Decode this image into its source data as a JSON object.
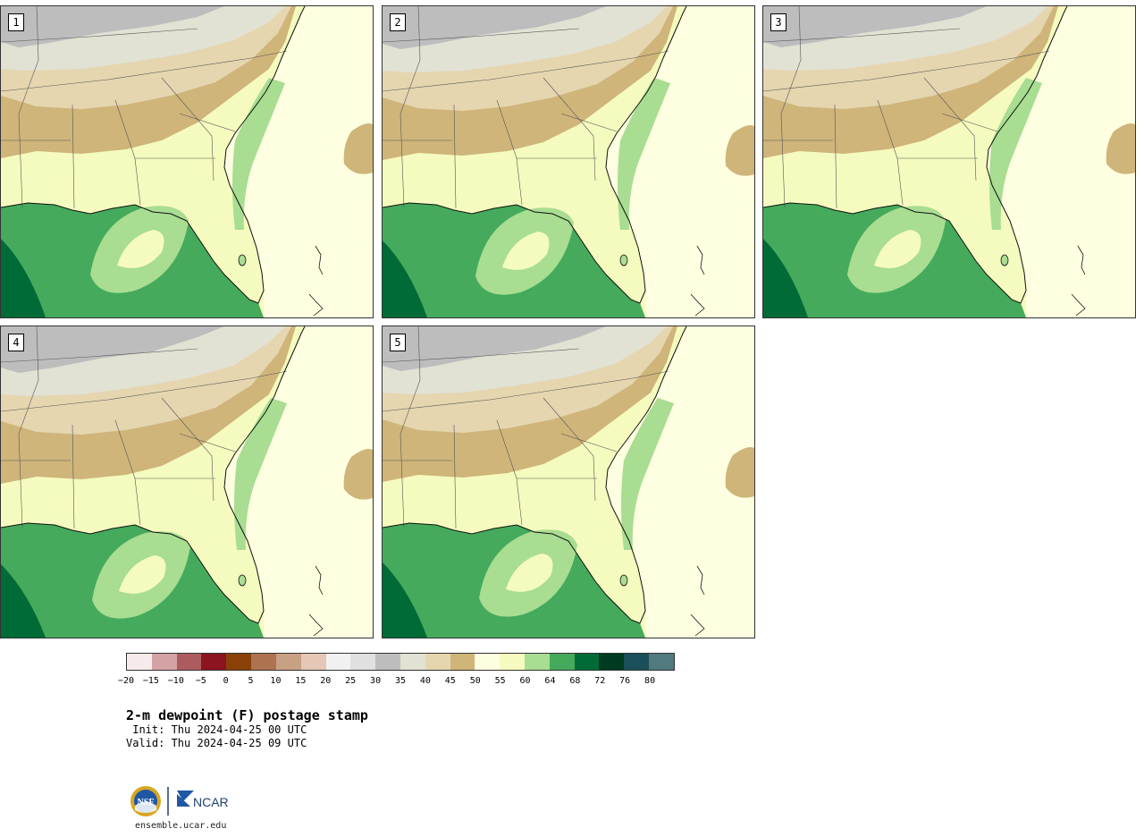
{
  "figure": {
    "title": "2-m dewpoint (F) postage stamp",
    "init_line": " Init: Thu 2024-04-25 00 UTC",
    "valid_line": "Valid: Thu 2024-04-25 09 UTC",
    "site": "ensemble.ucar.edu",
    "logos": [
      "NSF",
      "NCAR"
    ]
  },
  "panels": [
    {
      "label": "1"
    },
    {
      "label": "2"
    },
    {
      "label": "3"
    },
    {
      "label": "4"
    },
    {
      "label": "5"
    }
  ],
  "colorbar": {
    "colors": [
      "#f6eaea",
      "#d4a2a5",
      "#ac5c5f",
      "#8b1420",
      "#8a4108",
      "#ae7250",
      "#c8a084",
      "#e4c7b4",
      "#f1f1f1",
      "#e0e0e0",
      "#bdbdbd",
      "#e1e1d4",
      "#e5d6b0",
      "#cfb57a",
      "#fefee0",
      "#f5fbbe",
      "#a8dd92",
      "#45aa5c",
      "#016b37",
      "#003a20",
      "#1b4f59",
      "#507a7d"
    ],
    "ticks": [
      "−20",
      "−15",
      "−10",
      "−5",
      "0",
      "5",
      "10",
      "15",
      "20",
      "25",
      "30",
      "35",
      "40",
      "45",
      "50",
      "55",
      "60",
      "64",
      "68",
      "72",
      "76",
      "80"
    ]
  },
  "map_colors": {
    "below_30": "#bdbdbd",
    "35_40": "#e1e1d4",
    "40_45": "#e5d6b0",
    "45_50": "#cfb57a",
    "50_55": "#fefee0",
    "55_60": "#f5fbbe",
    "60_64": "#a8dd92",
    "64_68": "#45aa5c",
    "68_72": "#016b37"
  }
}
